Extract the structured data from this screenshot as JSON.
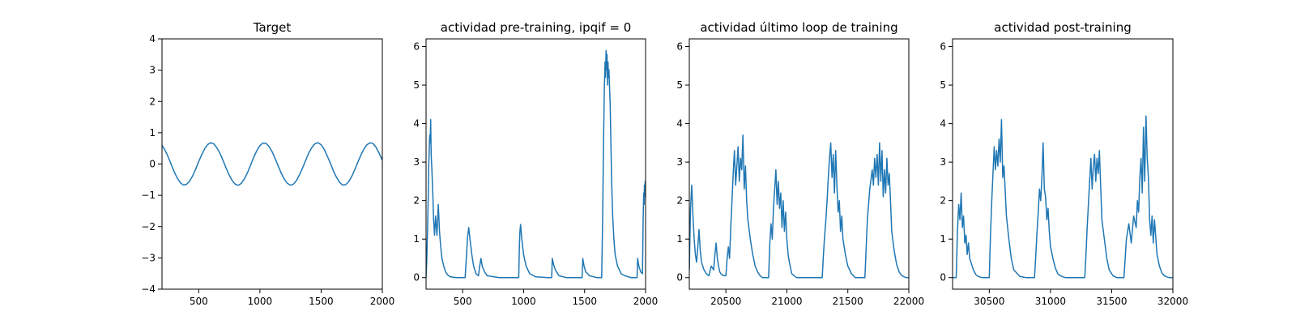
{
  "chart_data": [
    {
      "type": "line",
      "title": "Target",
      "xlabel": "",
      "ylabel": "",
      "xlim": [
        200,
        2000
      ],
      "ylim": [
        -4,
        4
      ],
      "xticks": [
        500,
        1000,
        1500,
        2000
      ],
      "yticks": [
        -4,
        -3,
        -2,
        -1,
        0,
        1,
        2,
        3,
        4
      ],
      "color": "#1f77b4",
      "series": [
        {
          "x": [
            200,
            225,
            250,
            275,
            300,
            325,
            350,
            375,
            400,
            425,
            450,
            475,
            500,
            525,
            550,
            575,
            600,
            625,
            650,
            675,
            700,
            725,
            750,
            775,
            800,
            825,
            850,
            875,
            900,
            925,
            950,
            975,
            1000,
            1025,
            1050,
            1075,
            1100,
            1125,
            1150,
            1175,
            1200,
            1225,
            1250,
            1275,
            1300,
            1325,
            1350,
            1375,
            1400,
            1425,
            1450,
            1475,
            1500,
            1525,
            1550,
            1575,
            1600,
            1625,
            1650,
            1675,
            1700,
            1725,
            1750,
            1775,
            1800,
            1825,
            1850,
            1875,
            1900,
            1925,
            1950,
            1975,
            2000
          ],
          "values": [
            0.6,
            0.44,
            0.23,
            -0.01,
            -0.25,
            -0.45,
            -0.6,
            -0.67,
            -0.65,
            -0.55,
            -0.38,
            -0.16,
            0.08,
            0.3,
            0.5,
            0.63,
            0.68,
            0.64,
            0.51,
            0.33,
            0.1,
            -0.14,
            -0.36,
            -0.54,
            -0.65,
            -0.68,
            -0.61,
            -0.46,
            -0.26,
            -0.02,
            0.22,
            0.43,
            0.59,
            0.67,
            0.66,
            0.56,
            0.39,
            0.17,
            -0.07,
            -0.3,
            -0.49,
            -0.62,
            -0.68,
            -0.64,
            -0.52,
            -0.33,
            -0.11,
            0.13,
            0.36,
            0.53,
            0.65,
            0.68,
            0.62,
            0.47,
            0.26,
            0.03,
            -0.22,
            -0.42,
            -0.58,
            -0.67,
            -0.66,
            -0.57,
            -0.4,
            -0.18,
            0.06,
            0.29,
            0.48,
            0.62,
            0.68,
            0.65,
            0.53,
            0.34,
            0.12
          ]
        }
      ]
    },
    {
      "type": "line",
      "title": "actividad pre-training, ipqif = 0",
      "xlabel": "",
      "ylabel": "",
      "xlim": [
        200,
        2000
      ],
      "ylim": [
        -0.3,
        6.2
      ],
      "xticks": [
        500,
        1000,
        1500,
        2000
      ],
      "yticks": [
        0,
        1,
        2,
        3,
        4,
        5,
        6
      ],
      "color": "#1f77b4",
      "series": [
        {
          "x": [
            200,
            205,
            212,
            218,
            222,
            226,
            230,
            234,
            238,
            242,
            248,
            255,
            262,
            270,
            278,
            290,
            300,
            310,
            320,
            330,
            345,
            360,
            380,
            400,
            450,
            500,
            520,
            530,
            540,
            550,
            560,
            575,
            590,
            610,
            630,
            640,
            650,
            660,
            680,
            700,
            800,
            900,
            960,
            965,
            970,
            975,
            985,
            1000,
            1020,
            1050,
            1100,
            1200,
            1230,
            1235,
            1245,
            1260,
            1290,
            1350,
            1450,
            1480,
            1485,
            1495,
            1510,
            1540,
            1600,
            1640,
            1648,
            1655,
            1662,
            1668,
            1672,
            1676,
            1680,
            1684,
            1688,
            1692,
            1696,
            1700,
            1705,
            1710,
            1716,
            1722,
            1730,
            1740,
            1750,
            1770,
            1800,
            1830,
            1880,
            1930,
            1935,
            1945,
            1960,
            1975,
            1980,
            1985,
            1988,
            1991,
            1994,
            1997,
            2000
          ],
          "values": [
            0.0,
            0.4,
            1.2,
            2.1,
            2.9,
            3.3,
            3.7,
            3.5,
            4.1,
            3.2,
            2.8,
            2.2,
            1.5,
            1.1,
            1.6,
            1.1,
            1.9,
            1.2,
            0.8,
            0.5,
            0.3,
            0.15,
            0.06,
            0.02,
            0.0,
            0.0,
            0.0,
            0.5,
            1.05,
            1.3,
            1.0,
            0.6,
            0.3,
            0.1,
            0.05,
            0.3,
            0.5,
            0.3,
            0.15,
            0.05,
            0.0,
            0.0,
            0.0,
            0.8,
            1.2,
            1.38,
            1.0,
            0.6,
            0.3,
            0.1,
            0.02,
            0.0,
            0.0,
            0.5,
            0.35,
            0.2,
            0.05,
            0.0,
            0.0,
            0.0,
            0.5,
            0.3,
            0.15,
            0.05,
            0.0,
            0.0,
            1.5,
            3.5,
            4.9,
            5.6,
            5.2,
            5.9,
            5.4,
            5.8,
            5.0,
            5.6,
            5.2,
            5.4,
            4.9,
            4.5,
            3.5,
            2.5,
            1.6,
            1.0,
            0.6,
            0.3,
            0.1,
            0.05,
            0.0,
            0.0,
            0.5,
            0.3,
            0.15,
            0.1,
            1.5,
            2.2,
            1.9,
            2.4,
            2.1,
            2.5,
            2.5
          ]
        }
      ]
    },
    {
      "type": "line",
      "title": "actividad último loop de training",
      "xlabel": "",
      "ylabel": "",
      "xlim": [
        20200,
        22000
      ],
      "ylim": [
        -0.3,
        6.2
      ],
      "xticks": [
        20500,
        21000,
        21500,
        22000
      ],
      "yticks": [
        0,
        1,
        2,
        3,
        4,
        5,
        6
      ],
      "color": "#1f77b4",
      "series": [
        {
          "x": [
            20200,
            20210,
            20220,
            20230,
            20240,
            20250,
            20260,
            20270,
            20280,
            20290,
            20300,
            20320,
            20340,
            20360,
            20380,
            20400,
            20410,
            20420,
            20430,
            20440,
            20450,
            20460,
            20480,
            20500,
            20510,
            20520,
            20530,
            20540,
            20550,
            20560,
            20570,
            20580,
            20590,
            20600,
            20610,
            20620,
            20630,
            20640,
            20650,
            20660,
            20670,
            20680,
            20700,
            20720,
            20740,
            20760,
            20780,
            20800,
            20830,
            20850,
            20860,
            20870,
            20880,
            20890,
            20900,
            20910,
            20920,
            20930,
            20940,
            20950,
            20960,
            20970,
            20980,
            20990,
            21000,
            21010,
            21020,
            21030,
            21040,
            21060,
            21080,
            21100,
            21130,
            21150,
            21180,
            21210,
            21230,
            21260,
            21290,
            21300,
            21310,
            21320,
            21330,
            21340,
            21350,
            21360,
            21370,
            21380,
            21390,
            21400,
            21410,
            21420,
            21430,
            21440,
            21450,
            21460,
            21480,
            21500,
            21530,
            21560,
            21590,
            21600,
            21640,
            21660,
            21680,
            21700,
            21710,
            21720,
            21730,
            21740,
            21750,
            21760,
            21770,
            21780,
            21790,
            21800,
            21810,
            21820,
            21830,
            21840,
            21850,
            21860,
            21880,
            21900,
            21920,
            21940,
            21960,
            21980,
            22000
          ],
          "values": [
            0.2,
            1.8,
            2.4,
            1.6,
            1.0,
            0.6,
            0.4,
            0.8,
            1.25,
            0.7,
            0.4,
            0.2,
            0.1,
            0.05,
            0.3,
            0.2,
            0.6,
            0.9,
            0.5,
            0.3,
            0.15,
            0.1,
            0.05,
            0.05,
            0.5,
            0.8,
            0.5,
            1.3,
            2.0,
            2.7,
            3.3,
            2.4,
            2.9,
            3.4,
            2.5,
            3.1,
            2.8,
            3.7,
            2.3,
            2.9,
            2.0,
            1.5,
            1.0,
            0.6,
            0.3,
            0.15,
            0.05,
            0.0,
            0.0,
            0.0,
            0.9,
            1.4,
            1.0,
            1.8,
            2.3,
            2.8,
            1.9,
            2.5,
            1.8,
            2.2,
            1.3,
            2.0,
            1.2,
            1.7,
            1.0,
            0.6,
            0.4,
            0.25,
            0.1,
            0.05,
            0.0,
            0.0,
            0.0,
            0.0,
            0.0,
            0.0,
            0.0,
            0.0,
            0.0,
            0.6,
            1.1,
            1.5,
            2.0,
            2.6,
            3.1,
            3.5,
            2.6,
            3.2,
            2.2,
            3.3,
            2.4,
            1.7,
            2.0,
            1.2,
            1.6,
            1.0,
            0.6,
            0.3,
            0.1,
            0.0,
            0.0,
            0.0,
            0.0,
            1.5,
            2.3,
            2.8,
            2.4,
            3.1,
            2.6,
            3.2,
            2.4,
            3.5,
            2.5,
            3.3,
            2.1,
            2.8,
            2.2,
            3.1,
            2.4,
            2.7,
            2.0,
            1.2,
            0.7,
            0.35,
            0.15,
            0.06,
            0.02,
            0.0,
            0.0
          ]
        }
      ]
    },
    {
      "type": "line",
      "title": "actividad post-training",
      "xlabel": "",
      "ylabel": "",
      "xlim": [
        30200,
        32000
      ],
      "ylim": [
        -0.3,
        6.2
      ],
      "xticks": [
        30500,
        31000,
        31500,
        32000
      ],
      "yticks": [
        0,
        1,
        2,
        3,
        4,
        5,
        6
      ],
      "color": "#1f77b4",
      "series": [
        {
          "x": [
            30200,
            30230,
            30240,
            30250,
            30260,
            30270,
            30280,
            30290,
            30300,
            30310,
            30320,
            30330,
            30340,
            30350,
            30370,
            30390,
            30410,
            30440,
            30470,
            30500,
            30510,
            30520,
            30530,
            30540,
            30550,
            30560,
            30570,
            30580,
            30590,
            30600,
            30610,
            30620,
            30640,
            30660,
            30680,
            30700,
            30750,
            30800,
            30870,
            30880,
            30890,
            30900,
            30910,
            30920,
            30930,
            30940,
            30950,
            30960,
            30970,
            30980,
            30990,
            31000,
            31020,
            31040,
            31060,
            31080,
            31120,
            31160,
            31200,
            31280,
            31290,
            31300,
            31310,
            31320,
            31330,
            31340,
            31350,
            31360,
            31370,
            31380,
            31390,
            31400,
            31410,
            31420,
            31440,
            31460,
            31480,
            31510,
            31540,
            31570,
            31600,
            31620,
            31640,
            31660,
            31680,
            31700,
            31710,
            31720,
            31730,
            31740,
            31750,
            31760,
            31770,
            31780,
            31790,
            31800,
            31810,
            31820,
            31830,
            31840,
            31850,
            31870,
            31890,
            31910,
            31930,
            31950,
            31970,
            31990,
            32000
          ],
          "values": [
            0.0,
            0.0,
            1.2,
            1.9,
            1.5,
            2.2,
            1.3,
            1.6,
            0.9,
            1.1,
            0.6,
            0.9,
            0.5,
            0.4,
            0.2,
            0.08,
            0.03,
            0.0,
            0.0,
            0.0,
            1.1,
            2.0,
            2.7,
            3.4,
            2.8,
            3.3,
            2.9,
            3.6,
            3.0,
            4.1,
            2.6,
            2.9,
            1.6,
            1.0,
            0.5,
            0.2,
            0.03,
            0.0,
            0.0,
            0.6,
            1.2,
            1.7,
            2.3,
            2.0,
            2.6,
            3.5,
            2.3,
            2.1,
            1.5,
            1.8,
            1.2,
            0.8,
            0.5,
            0.25,
            0.1,
            0.05,
            0.0,
            0.0,
            0.0,
            0.0,
            0.6,
            1.3,
            1.9,
            2.5,
            3.1,
            2.3,
            2.9,
            3.2,
            2.5,
            3.1,
            2.7,
            3.3,
            2.4,
            1.5,
            1.0,
            0.5,
            0.2,
            0.05,
            0.0,
            0.0,
            0.0,
            1.0,
            1.4,
            0.9,
            1.6,
            1.3,
            2.0,
            1.7,
            2.6,
            3.1,
            2.2,
            3.9,
            2.5,
            4.2,
            3.1,
            2.6,
            1.5,
            1.1,
            1.6,
            0.9,
            1.5,
            0.6,
            0.3,
            0.12,
            0.05,
            0.02,
            0.0,
            0.0,
            0.0
          ]
        }
      ]
    }
  ]
}
